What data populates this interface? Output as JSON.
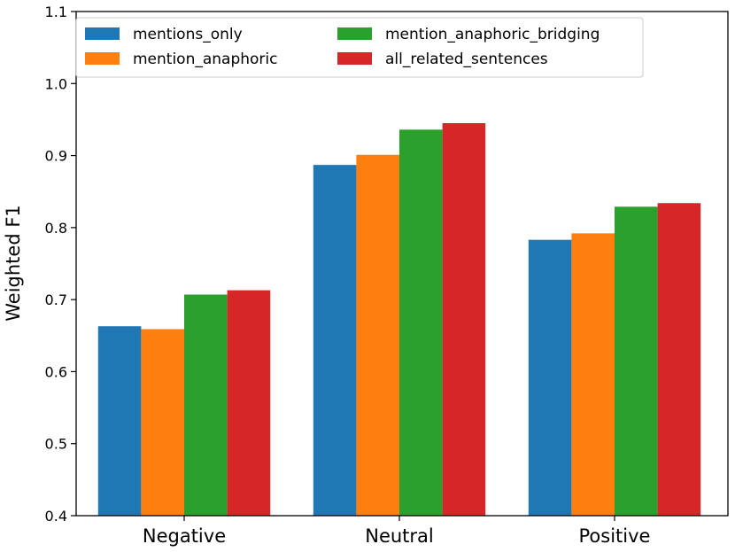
{
  "chart_data": {
    "type": "bar",
    "title": "",
    "xlabel": "",
    "ylabel": "Weighted F1",
    "ylim": [
      0.4,
      1.1
    ],
    "yticks": [
      "0.4",
      "0.5",
      "0.6",
      "0.7",
      "0.8",
      "0.9",
      "1.0",
      "1.1"
    ],
    "categories": [
      "Negative",
      "Neutral",
      "Positive"
    ],
    "legend_position": "top-left",
    "series": [
      {
        "name": "mentions_only",
        "color": "#1f77b4",
        "values": [
          0.663,
          0.887,
          0.783
        ]
      },
      {
        "name": "mention_anaphoric",
        "color": "#ff7f0e",
        "values": [
          0.659,
          0.901,
          0.792
        ]
      },
      {
        "name": "mention_anaphoric_bridging",
        "color": "#2ca02c",
        "values": [
          0.707,
          0.936,
          0.829
        ]
      },
      {
        "name": "all_related_sentences",
        "color": "#d62728",
        "values": [
          0.713,
          0.945,
          0.834
        ]
      }
    ]
  }
}
